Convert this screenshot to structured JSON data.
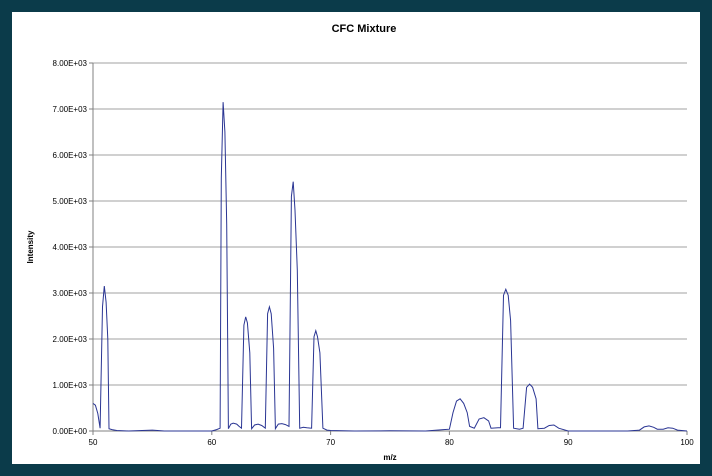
{
  "chart_data": {
    "type": "line",
    "title": "CFC Mixture",
    "xlabel": "m/z",
    "ylabel": "Intensity",
    "xlim": [
      50,
      100
    ],
    "ylim": [
      0,
      8000
    ],
    "x_ticks": [
      50,
      60,
      70,
      80,
      90,
      100
    ],
    "y_ticks": [
      {
        "value": 0,
        "label": "0.00E+00"
      },
      {
        "value": 1000,
        "label": "1.00E+03"
      },
      {
        "value": 2000,
        "label": "2.00E+03"
      },
      {
        "value": 3000,
        "label": "3.00E+03"
      },
      {
        "value": 4000,
        "label": "4.00E+03"
      },
      {
        "value": 5000,
        "label": "5.00E+03"
      },
      {
        "value": 6000,
        "label": "6.00E+03"
      },
      {
        "value": 7000,
        "label": "7.00E+03"
      },
      {
        "value": 8000,
        "label": "8.00E+03"
      }
    ],
    "grid": "horizontal",
    "legend": "none",
    "series": [
      {
        "color": "#2a3593",
        "points": [
          [
            50,
            600
          ],
          [
            50.2,
            560
          ],
          [
            50.4,
            380
          ],
          [
            50.6,
            60
          ],
          [
            50.8,
            2700
          ],
          [
            50.95,
            3150
          ],
          [
            51.1,
            2800
          ],
          [
            51.25,
            2000
          ],
          [
            51.35,
            50
          ],
          [
            51.6,
            30
          ],
          [
            52,
            10
          ],
          [
            53,
            0
          ],
          [
            55,
            20
          ],
          [
            56,
            0
          ],
          [
            60,
            0
          ],
          [
            60.4,
            30
          ],
          [
            60.7,
            60
          ],
          [
            60.8,
            5500
          ],
          [
            60.95,
            7150
          ],
          [
            61.1,
            6500
          ],
          [
            61.25,
            4500
          ],
          [
            61.4,
            50
          ],
          [
            61.6,
            150
          ],
          [
            61.8,
            170
          ],
          [
            62.1,
            150
          ],
          [
            62.3,
            100
          ],
          [
            62.5,
            60
          ],
          [
            62.7,
            2300
          ],
          [
            62.85,
            2480
          ],
          [
            63.0,
            2350
          ],
          [
            63.2,
            1700
          ],
          [
            63.35,
            50
          ],
          [
            63.6,
            130
          ],
          [
            63.9,
            150
          ],
          [
            64.2,
            120
          ],
          [
            64.5,
            60
          ],
          [
            64.7,
            2550
          ],
          [
            64.85,
            2700
          ],
          [
            65.0,
            2550
          ],
          [
            65.2,
            1800
          ],
          [
            65.35,
            50
          ],
          [
            65.6,
            150
          ],
          [
            65.9,
            160
          ],
          [
            66.2,
            140
          ],
          [
            66.5,
            100
          ],
          [
            66.7,
            5100
          ],
          [
            66.85,
            5420
          ],
          [
            67.0,
            4800
          ],
          [
            67.2,
            3500
          ],
          [
            67.4,
            60
          ],
          [
            67.7,
            80
          ],
          [
            68.0,
            70
          ],
          [
            68.4,
            60
          ],
          [
            68.6,
            2050
          ],
          [
            68.75,
            2180
          ],
          [
            68.9,
            2050
          ],
          [
            69.1,
            1700
          ],
          [
            69.35,
            60
          ],
          [
            69.7,
            20
          ],
          [
            70,
            10
          ],
          [
            72,
            0
          ],
          [
            75,
            5
          ],
          [
            78,
            0
          ],
          [
            79.5,
            30
          ],
          [
            80,
            40
          ],
          [
            80.3,
            400
          ],
          [
            80.6,
            650
          ],
          [
            80.9,
            700
          ],
          [
            81.2,
            600
          ],
          [
            81.5,
            400
          ],
          [
            81.7,
            100
          ],
          [
            82.1,
            60
          ],
          [
            82.5,
            260
          ],
          [
            82.9,
            290
          ],
          [
            83.3,
            220
          ],
          [
            83.5,
            60
          ],
          [
            84.1,
            70
          ],
          [
            84.3,
            70
          ],
          [
            84.55,
            2950
          ],
          [
            84.75,
            3080
          ],
          [
            84.95,
            2950
          ],
          [
            85.15,
            2400
          ],
          [
            85.4,
            60
          ],
          [
            85.9,
            40
          ],
          [
            86.2,
            60
          ],
          [
            86.5,
            950
          ],
          [
            86.75,
            1020
          ],
          [
            87.0,
            950
          ],
          [
            87.3,
            700
          ],
          [
            87.45,
            50
          ],
          [
            88,
            60
          ],
          [
            88.4,
            120
          ],
          [
            88.8,
            130
          ],
          [
            89.2,
            60
          ],
          [
            90,
            0
          ],
          [
            95,
            0
          ],
          [
            96,
            20
          ],
          [
            96.4,
            90
          ],
          [
            96.8,
            110
          ],
          [
            97.2,
            80
          ],
          [
            97.5,
            40
          ],
          [
            98,
            40
          ],
          [
            98.4,
            70
          ],
          [
            98.8,
            60
          ],
          [
            99.2,
            20
          ],
          [
            100,
            0
          ]
        ]
      }
    ]
  }
}
